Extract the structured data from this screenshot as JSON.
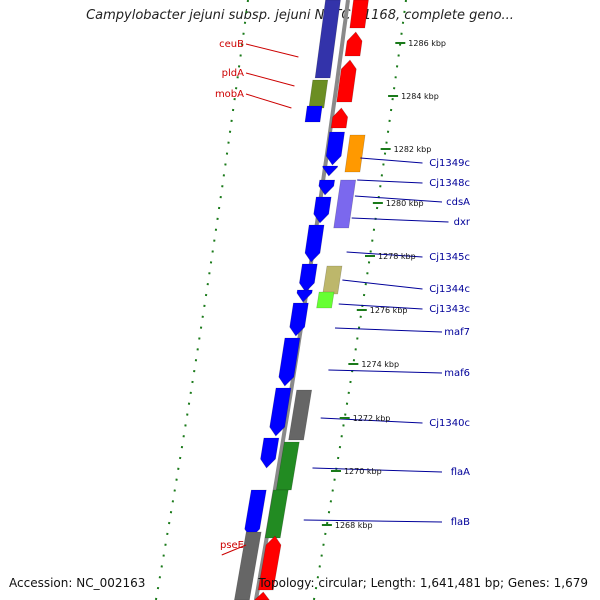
{
  "title": "Campylobacter jejuni subsp. jejuni NCTC 11168, complete geno...",
  "footer": {
    "accession": "Accession: NC_002163",
    "summary": "Topology: circular; Length: 1,641,481 bp; Genes: 1,679"
  },
  "colors": {
    "backbone": "#8a8a8a",
    "tick": "#1a7a1a",
    "left_labels": "#cc0000",
    "right_labels": "#000099",
    "red": "#ff0000",
    "blue": "#0000ff",
    "navy": "#3333aa",
    "olive": "#6b8e23",
    "orange": "#ff9900",
    "purple": "#7b68ee",
    "tan": "#bdb76b",
    "lime": "#66ff33",
    "gray": "#666666",
    "green": "#228b22"
  },
  "map": {
    "tick_labels": [
      "1286 kbp",
      "1284 kbp",
      "1282 kbp",
      "1280 kbp",
      "1278 kbp",
      "1276 kbp",
      "1274 kbp",
      "1272 kbp",
      "1270 kbp",
      "1268 kbp"
    ],
    "left_genes": [
      "ceuB",
      "pldA",
      "mobA",
      "pseE"
    ],
    "right_genes": [
      "Cj1349c",
      "Cj1348c",
      "cdsA",
      "dxr",
      "Cj1345c",
      "Cj1344c",
      "Cj1343c",
      "maf7",
      "maf6",
      "Cj1340c",
      "flaA",
      "flaB"
    ]
  }
}
